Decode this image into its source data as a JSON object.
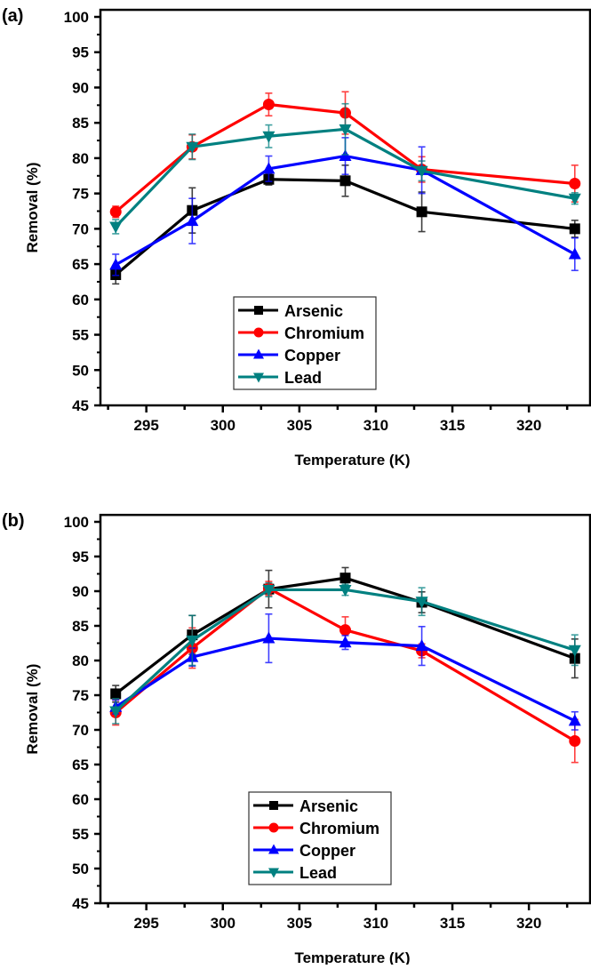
{
  "colors": {
    "Arsenic": "#000000",
    "Chromium": "#ff0000",
    "Copper": "#0000ff",
    "Lead": "#008080"
  },
  "chart_data": [
    {
      "type": "line",
      "panel_label": "(a)",
      "xlabel": "Temperature (K)",
      "ylabel": "Removal (%)",
      "xlim": [
        292,
        324
      ],
      "ylim": [
        45,
        101
      ],
      "xticks": [
        295,
        300,
        305,
        310,
        315,
        320
      ],
      "yticks": [
        45,
        50,
        55,
        60,
        65,
        70,
        75,
        80,
        85,
        90,
        95,
        100
      ],
      "grid": false,
      "legend_position": "bottom-center",
      "x": [
        293,
        298,
        303,
        308,
        313,
        323
      ],
      "series": [
        {
          "name": "Arsenic",
          "marker": "square",
          "values": [
            63.5,
            72.6,
            77.0,
            76.8,
            72.4,
            70.0
          ],
          "errors": [
            1.3,
            3.2,
            0.8,
            2.2,
            2.8,
            1.2
          ]
        },
        {
          "name": "Chromium",
          "marker": "circle",
          "values": [
            72.4,
            81.6,
            87.6,
            86.4,
            78.4,
            76.4
          ],
          "errors": [
            0.8,
            1.7,
            1.6,
            3.0,
            1.8,
            2.6
          ]
        },
        {
          "name": "Copper",
          "marker": "triangle-up",
          "values": [
            64.9,
            71.1,
            78.5,
            80.3,
            78.3,
            66.4
          ],
          "errors": [
            1.5,
            3.2,
            1.8,
            2.6,
            3.3,
            2.3
          ]
        },
        {
          "name": "Lead",
          "marker": "triangle-down",
          "values": [
            70.3,
            81.6,
            83.1,
            84.1,
            78.2,
            74.3
          ],
          "errors": [
            1.0,
            1.8,
            1.6,
            3.6,
            1.4,
            0.8
          ]
        }
      ]
    },
    {
      "type": "line",
      "panel_label": "(b)",
      "xlabel": "Temperature (K)",
      "ylabel": "Removal (%)",
      "xlim": [
        292,
        324
      ],
      "ylim": [
        45,
        101
      ],
      "xticks": [
        295,
        300,
        305,
        310,
        315,
        320
      ],
      "yticks": [
        45,
        50,
        55,
        60,
        65,
        70,
        75,
        80,
        85,
        90,
        95,
        100
      ],
      "grid": false,
      "legend_position": "bottom-center",
      "x": [
        293,
        298,
        303,
        308,
        313,
        323
      ],
      "series": [
        {
          "name": "Arsenic",
          "marker": "square",
          "values": [
            75.2,
            83.7,
            90.3,
            91.9,
            88.4,
            80.3
          ],
          "errors": [
            1.2,
            2.8,
            2.7,
            1.5,
            1.5,
            2.8
          ]
        },
        {
          "name": "Chromium",
          "marker": "circle",
          "values": [
            72.5,
            81.8,
            90.4,
            84.4,
            81.4,
            68.4
          ],
          "errors": [
            1.8,
            2.9,
            1.0,
            1.9,
            1.0,
            3.1
          ]
        },
        {
          "name": "Copper",
          "marker": "triangle-up",
          "values": [
            73.3,
            80.5,
            83.2,
            82.6,
            82.1,
            71.3
          ],
          "errors": [
            1.0,
            1.3,
            3.5,
            1.0,
            2.8,
            1.3
          ]
        },
        {
          "name": "Lead",
          "marker": "triangle-down",
          "values": [
            72.7,
            82.9,
            90.2,
            90.2,
            88.5,
            81.5
          ],
          "errors": [
            1.8,
            3.6,
            1.0,
            0.8,
            2.0,
            2.2
          ]
        }
      ]
    }
  ]
}
